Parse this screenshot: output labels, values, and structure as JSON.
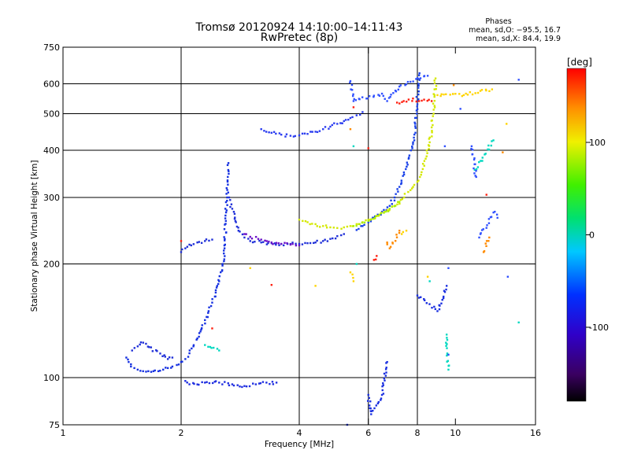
{
  "title_line1": "Tromsø 20120924 14:10:00–14:11:43",
  "title_line2": "RwPretec (8p)",
  "phases": {
    "heading": "Phases",
    "o_line": "mean, sd,O: −95.5, 16.7",
    "x_line": "mean, sd,X:  84.4, 19.9"
  },
  "chart_data": {
    "type": "scatter",
    "xlabel": "Frequency [MHz]",
    "ylabel": "Stationary phase Virtual Height [km]",
    "xscale": "log",
    "yscale": "log",
    "xlim": [
      1,
      16
    ],
    "ylim": [
      75,
      750
    ],
    "x_ticks": [
      1,
      2,
      4,
      6,
      8,
      10,
      16
    ],
    "x_tick_labels": [
      "1",
      "2",
      "4",
      "6",
      "8",
      "10",
      "16"
    ],
    "y_ticks": [
      75,
      100,
      200,
      300,
      400,
      500,
      600,
      750
    ],
    "y_tick_labels": [
      "75",
      "100",
      "200",
      "300",
      "400",
      "500",
      "600",
      "750"
    ],
    "grid_x": [
      2,
      4,
      6,
      8
    ],
    "grid_y": [
      100,
      200,
      300,
      400,
      500,
      600
    ],
    "colorbar": {
      "label": "[deg]",
      "ticks": [
        100,
        0,
        -100
      ],
      "tick_labels": [
        "100",
        "0",
        "-100"
      ],
      "range": [
        -180,
        180
      ],
      "colormap": "rainbow (black-purple-blue-cyan-green-yellow-orange-red)"
    },
    "series": [
      {
        "phase_deg": -100,
        "color": "#1530e0",
        "points": [
          [
            1.45,
            113
          ],
          [
            1.47,
            110
          ],
          [
            1.49,
            107
          ],
          [
            1.52,
            106
          ],
          [
            1.55,
            105
          ],
          [
            1.6,
            104
          ],
          [
            1.65,
            104
          ],
          [
            1.7,
            104
          ],
          [
            1.75,
            104
          ],
          [
            1.8,
            105
          ],
          [
            1.85,
            106
          ],
          [
            1.9,
            107
          ],
          [
            1.95,
            108
          ],
          [
            2.0,
            110
          ],
          [
            2.05,
            112
          ],
          [
            2.1,
            116
          ],
          [
            2.15,
            121
          ],
          [
            2.2,
            127
          ],
          [
            2.25,
            134
          ],
          [
            2.3,
            142
          ],
          [
            2.35,
            150
          ],
          [
            2.4,
            158
          ],
          [
            2.45,
            168
          ],
          [
            2.5,
            180
          ],
          [
            2.55,
            200
          ],
          [
            2.58,
            220
          ],
          [
            2.6,
            260
          ],
          [
            2.62,
            300
          ],
          [
            2.63,
            340
          ],
          [
            2.64,
            370
          ]
        ]
      },
      {
        "phase_deg": -95,
        "color": "#2030d8",
        "points": [
          [
            1.5,
            118
          ],
          [
            1.55,
            121
          ],
          [
            1.58,
            124
          ],
          [
            1.85,
            112
          ],
          [
            1.9,
            113
          ],
          [
            2.0,
            215
          ],
          [
            2.05,
            220
          ],
          [
            2.1,
            225
          ],
          [
            2.2,
            228
          ],
          [
            2.3,
            230
          ],
          [
            2.4,
            232
          ],
          [
            2.65,
            300
          ],
          [
            2.7,
            280
          ],
          [
            2.75,
            260
          ],
          [
            2.8,
            245
          ],
          [
            2.9,
            235
          ],
          [
            3.0,
            230
          ],
          [
            3.2,
            228
          ],
          [
            3.4,
            227
          ],
          [
            3.6,
            226
          ],
          [
            3.8,
            226
          ],
          [
            4.0,
            226
          ],
          [
            4.2,
            227
          ],
          [
            4.4,
            228
          ],
          [
            4.6,
            230
          ],
          [
            4.8,
            233
          ],
          [
            5.0,
            237
          ],
          [
            5.2,
            240
          ]
        ]
      },
      {
        "phase_deg": -98,
        "color": "#1f2ee0",
        "points": [
          [
            2.05,
            98
          ],
          [
            2.1,
            96
          ],
          [
            2.3,
            97
          ],
          [
            2.5,
            97
          ],
          [
            2.7,
            96
          ],
          [
            2.9,
            95
          ],
          [
            3.1,
            96
          ],
          [
            3.3,
            97
          ],
          [
            3.5,
            97
          ]
        ]
      },
      {
        "phase_deg": -92,
        "color": "#2a3cf0",
        "points": [
          [
            3.2,
            455
          ],
          [
            3.4,
            445
          ],
          [
            3.6,
            440
          ],
          [
            3.8,
            437
          ],
          [
            4.0,
            438
          ],
          [
            4.2,
            442
          ],
          [
            4.4,
            448
          ],
          [
            4.6,
            455
          ],
          [
            4.8,
            462
          ],
          [
            5.0,
            470
          ],
          [
            5.2,
            478
          ],
          [
            5.4,
            487
          ],
          [
            5.6,
            495
          ],
          [
            5.8,
            505
          ]
        ]
      },
      {
        "phase_deg": -100,
        "color": "#1840e8",
        "points": [
          [
            5.6,
            246
          ],
          [
            5.8,
            252
          ],
          [
            6.0,
            258
          ],
          [
            6.2,
            265
          ],
          [
            6.5,
            275
          ],
          [
            6.8,
            285
          ],
          [
            7.0,
            300
          ],
          [
            7.2,
            320
          ],
          [
            7.4,
            345
          ],
          [
            7.6,
            380
          ],
          [
            7.8,
            420
          ],
          [
            7.9,
            470
          ],
          [
            8.0,
            540
          ],
          [
            8.05,
            600
          ],
          [
            8.1,
            640
          ]
        ]
      },
      {
        "phase_deg": -125,
        "color": "#6a10c8",
        "points": [
          [
            2.9,
            240
          ],
          [
            3.0,
            236
          ],
          [
            3.2,
            232
          ],
          [
            3.4,
            228
          ],
          [
            3.6,
            226
          ],
          [
            3.8,
            225
          ],
          [
            4.0,
            224
          ]
        ]
      },
      {
        "phase_deg": 80,
        "color": "#d4e800",
        "points": [
          [
            4.0,
            262
          ],
          [
            4.2,
            258
          ],
          [
            4.4,
            255
          ],
          [
            4.6,
            252
          ],
          [
            4.8,
            250
          ],
          [
            5.0,
            249
          ],
          [
            5.2,
            250
          ],
          [
            5.4,
            252
          ],
          [
            5.6,
            255
          ],
          [
            5.8,
            258
          ],
          [
            6.0,
            262
          ],
          [
            6.3,
            268
          ],
          [
            6.6,
            275
          ],
          [
            7.0,
            285
          ],
          [
            7.4,
            300
          ],
          [
            7.8,
            320
          ],
          [
            8.0,
            330
          ],
          [
            8.2,
            350
          ],
          [
            8.4,
            380
          ],
          [
            8.6,
            420
          ],
          [
            8.7,
            460
          ],
          [
            8.8,
            500
          ],
          [
            8.85,
            560
          ],
          [
            8.9,
            620
          ]
        ]
      },
      {
        "phase_deg": 60,
        "color": "#a8f000",
        "points": [
          [
            5.5,
            252
          ],
          [
            5.7,
            255
          ],
          [
            6.0,
            260
          ],
          [
            6.4,
            270
          ],
          [
            6.8,
            280
          ],
          [
            7.2,
            292
          ]
        ]
      },
      {
        "phase_deg": 95,
        "color": "#ffd400",
        "points": [
          [
            3.0,
            195
          ],
          [
            4.4,
            175
          ],
          [
            5.4,
            190
          ],
          [
            5.5,
            180
          ],
          [
            7.3,
            240
          ],
          [
            7.5,
            245
          ],
          [
            8.5,
            185
          ],
          [
            9.0,
            560
          ],
          [
            10.5,
            560
          ],
          [
            12.4,
            580
          ],
          [
            13.5,
            470
          ]
        ]
      },
      {
        "phase_deg": 35,
        "color": "#00d8c0",
        "points": [
          [
            2.3,
            122
          ],
          [
            2.5,
            118
          ],
          [
            5.5,
            410
          ],
          [
            5.6,
            200
          ],
          [
            8.6,
            180
          ],
          [
            9.5,
            130
          ],
          [
            9.6,
            105
          ],
          [
            11.2,
            355
          ],
          [
            12.5,
            425
          ],
          [
            14.5,
            140
          ]
        ]
      },
      {
        "phase_deg": 160,
        "color": "#ff2010",
        "points": [
          [
            2.0,
            230
          ],
          [
            2.4,
            135
          ],
          [
            3.4,
            176
          ],
          [
            5.5,
            520
          ],
          [
            6.0,
            405
          ],
          [
            6.2,
            205
          ],
          [
            6.3,
            210
          ],
          [
            7.1,
            535
          ],
          [
            7.6,
            545
          ],
          [
            8.7,
            540
          ],
          [
            12.0,
            305
          ]
        ]
      },
      {
        "phase_deg": 130,
        "color": "#ff8a00",
        "points": [
          [
            5.4,
            455
          ],
          [
            6.7,
            228
          ],
          [
            6.8,
            220
          ],
          [
            7.2,
            245
          ],
          [
            9.9,
            595
          ],
          [
            11.8,
            215
          ],
          [
            12.2,
            235
          ],
          [
            13.2,
            395
          ]
        ]
      },
      {
        "phase_deg": -110,
        "color": "#3050ff",
        "points": [
          [
            5.4,
            610
          ],
          [
            5.5,
            540
          ],
          [
            6.5,
            565
          ],
          [
            6.7,
            540
          ],
          [
            7.2,
            590
          ],
          [
            8.5,
            630
          ],
          [
            9.4,
            410
          ],
          [
            9.6,
            195
          ],
          [
            9.6,
            115
          ],
          [
            10.3,
            515
          ],
          [
            11.0,
            410
          ],
          [
            11.3,
            340
          ],
          [
            11.5,
            235
          ],
          [
            12.6,
            275
          ],
          [
            12.8,
            265
          ],
          [
            13.6,
            185
          ],
          [
            14.5,
            615
          ]
        ]
      },
      {
        "phase_deg": -105,
        "color": "#1a2fe0",
        "points": [
          [
            5.3,
            75
          ],
          [
            6.0,
            90
          ],
          [
            6.1,
            80
          ],
          [
            6.5,
            90
          ],
          [
            6.7,
            110
          ],
          [
            8.0,
            165
          ],
          [
            9.0,
            150
          ],
          [
            9.5,
            175
          ]
        ]
      }
    ]
  }
}
